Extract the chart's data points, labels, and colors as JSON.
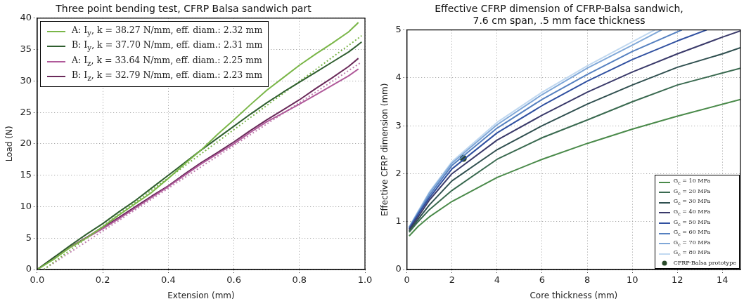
{
  "chart_data": [
    {
      "type": "line",
      "title": "Three point bending test, CFRP Balsa sandwich part",
      "xlabel": "Extension (mm)",
      "ylabel": "Load (N)",
      "xlim": [
        0,
        1
      ],
      "xticks": [
        {
          "value": 0,
          "label": "0.0"
        },
        0.2,
        0.4,
        0.6,
        0.8,
        {
          "value": 1,
          "label": "1.0"
        }
      ],
      "ylim": [
        0,
        40
      ],
      "yticks": [
        0,
        5,
        10,
        15,
        20,
        25,
        30,
        35,
        40
      ],
      "grid": true,
      "legend": "top left",
      "series": [
        {
          "name": "A: I$_{y}$, k = 38.27 N/mm, eff. diam.: 2.32 mm",
          "color": "#7ab648",
          "x": [
            0,
            0.05,
            0.1,
            0.15,
            0.2,
            0.25,
            0.3,
            0.35,
            0.4,
            0.45,
            0.5,
            0.55,
            0.6,
            0.65,
            0.7,
            0.75,
            0.8,
            0.85,
            0.9,
            0.95,
            0.98
          ],
          "values": [
            0,
            1.6,
            3.5,
            5.0,
            6.8,
            8.7,
            10.5,
            12.3,
            14.5,
            16.8,
            19.0,
            21.5,
            23.8,
            26.2,
            28.5,
            30.5,
            32.5,
            34.3,
            36.0,
            37.8,
            39.3
          ]
        },
        {
          "name": "B: I$_{y}$, k = 37.70 N/mm, eff. diam.: 2.31 mm",
          "color": "#2f5e2f",
          "x": [
            0,
            0.05,
            0.1,
            0.15,
            0.2,
            0.25,
            0.3,
            0.35,
            0.4,
            0.45,
            0.5,
            0.55,
            0.6,
            0.65,
            0.7,
            0.75,
            0.8,
            0.85,
            0.9,
            0.95,
            0.99
          ],
          "values": [
            0,
            1.9,
            3.8,
            5.6,
            7.3,
            9.2,
            11.0,
            13.0,
            15.0,
            17.0,
            19.0,
            20.9,
            22.8,
            24.7,
            26.5,
            28.2,
            29.8,
            31.4,
            33.0,
            34.6,
            36.2
          ]
        },
        {
          "name": "A: I$_{z}$, k = 33.64 N/mm, eff. diam.: 2.25 mm",
          "color": "#b05a9a",
          "x": [
            0,
            0.05,
            0.1,
            0.15,
            0.2,
            0.25,
            0.3,
            0.35,
            0.4,
            0.45,
            0.5,
            0.55,
            0.6,
            0.65,
            0.7,
            0.75,
            0.8,
            0.85,
            0.9,
            0.95,
            0.98
          ],
          "values": [
            0,
            1.8,
            3.5,
            5.0,
            6.5,
            8.1,
            9.8,
            11.5,
            13.2,
            15.0,
            16.8,
            18.4,
            20.0,
            21.8,
            23.5,
            24.9,
            26.3,
            27.8,
            29.3,
            30.8,
            31.9
          ]
        },
        {
          "name": "B: I$_{z}$, k = 32.79 N/mm, eff. diam.: 2.23 mm",
          "color": "#6a2a5a",
          "x": [
            0,
            0.05,
            0.1,
            0.15,
            0.2,
            0.25,
            0.3,
            0.35,
            0.4,
            0.45,
            0.5,
            0.55,
            0.6,
            0.65,
            0.7,
            0.75,
            0.8,
            0.85,
            0.9,
            0.95,
            0.98
          ],
          "values": [
            0,
            1.9,
            3.6,
            5.1,
            6.7,
            8.3,
            10.0,
            11.7,
            13.3,
            15.2,
            17.0,
            18.6,
            20.3,
            22.1,
            23.8,
            25.4,
            27.0,
            28.8,
            30.5,
            32.3,
            33.6
          ]
        },
        {
          "color": "#7ab648",
          "line_style": "dotted",
          "x": [
            0.02,
            0.99
          ],
          "values": [
            0,
            37.2
          ]
        },
        {
          "color": "#c080b0",
          "line_style": "dotted",
          "x": [
            0.02,
            0.99
          ],
          "values": [
            0,
            33.0
          ]
        }
      ]
    },
    {
      "type": "line",
      "title": "Effective CFRP dimension of CFRP-Balsa sandwich,\n7.6 cm span, .5 mm face thickness",
      "xlabel": "Core thickness (mm)",
      "ylabel": "Effective CFRP dimension (mm)",
      "xlim": [
        0,
        14.8
      ],
      "xticks": [
        0,
        2,
        4,
        6,
        8,
        10,
        12,
        14
      ],
      "ylim": [
        0,
        5
      ],
      "yticks": [
        0,
        1,
        2,
        3,
        4,
        5
      ],
      "grid": true,
      "legend": "bottom right",
      "series": [
        {
          "name": "G$_{c}$ = 10 MPa",
          "color": "#4a8a4a",
          "x": [
            0.1,
            0.5,
            1,
            2,
            4,
            6,
            8,
            10,
            12,
            14,
            14.8
          ],
          "values": [
            0.7,
            0.9,
            1.1,
            1.42,
            1.92,
            2.3,
            2.63,
            2.93,
            3.2,
            3.45,
            3.55
          ]
        },
        {
          "name": "G$_{c}$ = 20 MPa",
          "color": "#3a6a50",
          "x": [
            0.1,
            0.5,
            1,
            2,
            4,
            6,
            8,
            10,
            12,
            14,
            14.8
          ],
          "values": [
            0.78,
            1.0,
            1.25,
            1.65,
            2.3,
            2.75,
            3.12,
            3.5,
            3.85,
            4.1,
            4.2
          ]
        },
        {
          "name": "G$_{c}$ = 30 MPa",
          "color": "#2f4f4f",
          "x": [
            0.1,
            0.5,
            1,
            2,
            4,
            6,
            8,
            10,
            12,
            14,
            14.8
          ],
          "values": [
            0.8,
            1.05,
            1.35,
            1.85,
            2.5,
            3.0,
            3.45,
            3.85,
            4.22,
            4.5,
            4.63
          ]
        },
        {
          "name": "G$_{c}$ = 40 MPa",
          "color": "#3a3a6a",
          "x": [
            0.1,
            0.5,
            1,
            2,
            4,
            6,
            8,
            10,
            12,
            14,
            14.8
          ],
          "values": [
            0.83,
            1.1,
            1.45,
            2.0,
            2.7,
            3.22,
            3.7,
            4.12,
            4.5,
            4.85,
            4.98
          ]
        },
        {
          "name": "G$_{c}$ = 50 MPa",
          "color": "#3050a0",
          "x": [
            0.1,
            0.5,
            1,
            2,
            4,
            6,
            8,
            10,
            12,
            13.3
          ],
          "values": [
            0.85,
            1.15,
            1.5,
            2.1,
            2.85,
            3.42,
            3.93,
            4.38,
            4.77,
            5.0
          ]
        },
        {
          "name": "G$_{c}$ = 60 MPa",
          "color": "#5580c0",
          "x": [
            0.1,
            0.5,
            1,
            2,
            4,
            6,
            8,
            10,
            12.2
          ],
          "values": [
            0.87,
            1.18,
            1.55,
            2.17,
            2.95,
            3.55,
            4.07,
            4.55,
            5.0
          ]
        },
        {
          "name": "G$_{c}$ = 70 MPa",
          "color": "#80a8d8",
          "x": [
            0.1,
            0.5,
            1,
            2,
            4,
            6,
            8,
            10,
            11.3
          ],
          "values": [
            0.88,
            1.2,
            1.6,
            2.22,
            3.02,
            3.65,
            4.2,
            4.68,
            5.0
          ]
        },
        {
          "name": "G$_{c}$ = 80 MPa",
          "color": "#c0d8f0",
          "x": [
            0.1,
            0.5,
            1,
            2,
            4,
            6,
            8,
            10,
            11.0
          ],
          "values": [
            0.89,
            1.22,
            1.62,
            2.25,
            3.07,
            3.7,
            4.25,
            4.75,
            5.0
          ]
        },
        {
          "name": "CFRP-Balsa prototype",
          "type": "scatter",
          "marker": "circle",
          "color": "#2a4a2a",
          "x": [
            2.5
          ],
          "values": [
            2.32
          ]
        }
      ]
    }
  ]
}
